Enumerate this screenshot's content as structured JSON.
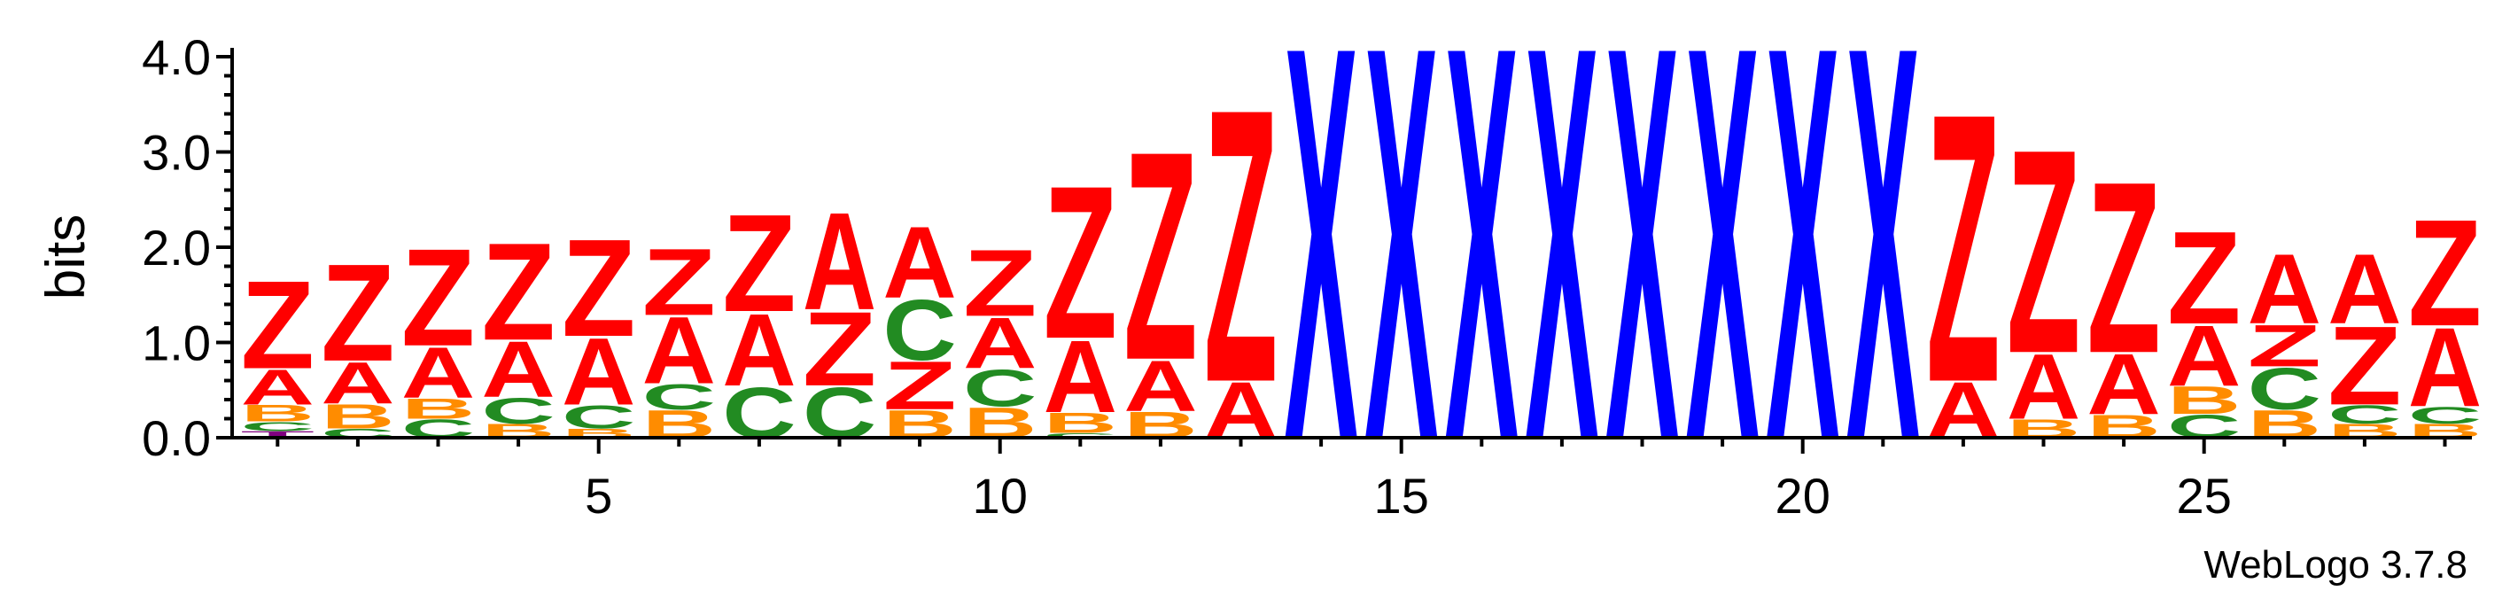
{
  "chart_data": {
    "type": "sequence-logo",
    "ylabel": "bits",
    "xlabel": "",
    "ylim": [
      0,
      4.0
    ],
    "yticks": [
      "0.0",
      "1.0",
      "2.0",
      "3.0",
      "4.0"
    ],
    "xticks": [
      5,
      10,
      15,
      20,
      25
    ],
    "x_range": [
      1,
      28
    ],
    "credit": "WebLogo 3.7.8",
    "colors": {
      "Z": "#ff0000",
      "A": "#ff0000",
      "X": "#0000ff",
      "B": "#ff8c00",
      "C": "#228b22",
      "T": "#800080"
    },
    "positions": [
      {
        "pos": 1,
        "stack": [
          [
            "T",
            0.07
          ],
          [
            "C",
            0.1
          ],
          [
            "B",
            0.18
          ],
          [
            "A",
            0.38
          ],
          [
            "Z",
            0.95
          ]
        ]
      },
      {
        "pos": 2,
        "stack": [
          [
            "C",
            0.1
          ],
          [
            "B",
            0.26
          ],
          [
            "A",
            0.45
          ],
          [
            "Z",
            1.05
          ]
        ]
      },
      {
        "pos": 3,
        "stack": [
          [
            "C",
            0.2
          ],
          [
            "B",
            0.22
          ],
          [
            "A",
            0.55
          ],
          [
            "Z",
            1.05
          ]
        ]
      },
      {
        "pos": 4,
        "stack": [
          [
            "B",
            0.15
          ],
          [
            "C",
            0.28
          ],
          [
            "A",
            0.6
          ],
          [
            "Z",
            1.05
          ]
        ]
      },
      {
        "pos": 5,
        "stack": [
          [
            "B",
            0.1
          ],
          [
            "C",
            0.25
          ],
          [
            "A",
            0.72
          ],
          [
            "Z",
            1.05
          ]
        ]
      },
      {
        "pos": 6,
        "stack": [
          [
            "B",
            0.3
          ],
          [
            "C",
            0.27
          ],
          [
            "A",
            0.72
          ],
          [
            "Z",
            0.72
          ]
        ]
      },
      {
        "pos": 7,
        "stack": [
          [
            "C",
            0.55
          ],
          [
            "A",
            0.78
          ],
          [
            "Z",
            1.05
          ]
        ]
      },
      {
        "pos": 8,
        "stack": [
          [
            "C",
            0.55
          ],
          [
            "Z",
            0.8
          ],
          [
            "A",
            1.05
          ]
        ]
      },
      {
        "pos": 9,
        "stack": [
          [
            "B",
            0.3
          ],
          [
            "Z",
            0.52
          ],
          [
            "C",
            0.65
          ],
          [
            "A",
            0.77
          ]
        ]
      },
      {
        "pos": 10,
        "stack": [
          [
            "B",
            0.33
          ],
          [
            "C",
            0.4
          ],
          [
            "A",
            0.55
          ],
          [
            "Z",
            0.72
          ]
        ]
      },
      {
        "pos": 11,
        "stack": [
          [
            "C",
            0.05
          ],
          [
            "B",
            0.22
          ],
          [
            "A",
            0.78
          ],
          [
            "Z",
            1.65
          ]
        ]
      },
      {
        "pos": 12,
        "stack": [
          [
            "B",
            0.28
          ],
          [
            "A",
            0.55
          ],
          [
            "Z",
            2.25
          ]
        ]
      },
      {
        "pos": 13,
        "stack": [
          [
            "A",
            0.6
          ],
          [
            "Z",
            2.95
          ]
        ]
      },
      {
        "pos": 14,
        "stack": [
          [
            "X",
            4.25
          ]
        ]
      },
      {
        "pos": 15,
        "stack": [
          [
            "X",
            4.25
          ]
        ]
      },
      {
        "pos": 16,
        "stack": [
          [
            "X",
            4.25
          ]
        ]
      },
      {
        "pos": 17,
        "stack": [
          [
            "X",
            4.25
          ]
        ]
      },
      {
        "pos": 18,
        "stack": [
          [
            "X",
            4.25
          ]
        ]
      },
      {
        "pos": 19,
        "stack": [
          [
            "X",
            4.25
          ]
        ]
      },
      {
        "pos": 20,
        "stack": [
          [
            "X",
            4.25
          ]
        ]
      },
      {
        "pos": 21,
        "stack": [
          [
            "X",
            4.25
          ]
        ]
      },
      {
        "pos": 22,
        "stack": [
          [
            "A",
            0.6
          ],
          [
            "Z",
            2.9
          ]
        ]
      },
      {
        "pos": 23,
        "stack": [
          [
            "B",
            0.2
          ],
          [
            "A",
            0.7
          ],
          [
            "Z",
            2.2
          ]
        ]
      },
      {
        "pos": 24,
        "stack": [
          [
            "B",
            0.25
          ],
          [
            "A",
            0.65
          ],
          [
            "Z",
            1.85
          ]
        ]
      },
      {
        "pos": 25,
        "stack": [
          [
            "C",
            0.25
          ],
          [
            "B",
            0.3
          ],
          [
            "A",
            0.65
          ],
          [
            "Z",
            1.0
          ]
        ]
      },
      {
        "pos": 26,
        "stack": [
          [
            "B",
            0.3
          ],
          [
            "C",
            0.45
          ],
          [
            "Z",
            0.45
          ],
          [
            "A",
            0.75
          ]
        ]
      },
      {
        "pos": 27,
        "stack": [
          [
            "B",
            0.15
          ],
          [
            "C",
            0.2
          ],
          [
            "Z",
            0.85
          ],
          [
            "A",
            0.75
          ]
        ]
      },
      {
        "pos": 28,
        "stack": [
          [
            "B",
            0.15
          ],
          [
            "C",
            0.18
          ],
          [
            "A",
            0.85
          ],
          [
            "Z",
            1.15
          ]
        ]
      }
    ]
  }
}
